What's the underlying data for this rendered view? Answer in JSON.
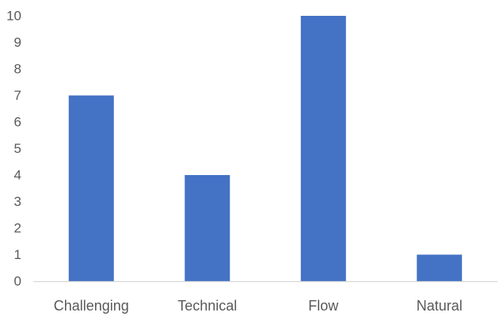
{
  "chart_data": {
    "type": "bar",
    "categories": [
      "Challenging",
      "Technical",
      "Flow",
      "Natural"
    ],
    "values": [
      7,
      4,
      10,
      1
    ],
    "ylim": [
      0,
      10
    ],
    "yticks": [
      0,
      1,
      2,
      3,
      4,
      5,
      6,
      7,
      8,
      9,
      10
    ],
    "grid": false,
    "legend": "none",
    "colors": {
      "bar": "#4472C4",
      "axis": "#D9D9D9",
      "text": "#595959"
    }
  }
}
